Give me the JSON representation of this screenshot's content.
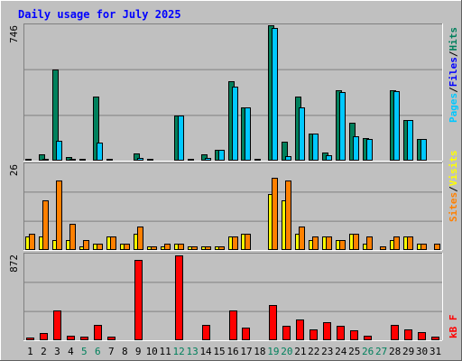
{
  "chart_data": {
    "type": "bar",
    "title": "Daily usage for July 2025",
    "categories": [
      "1",
      "2",
      "3",
      "4",
      "5",
      "6",
      "7",
      "8",
      "9",
      "10",
      "11",
      "12",
      "13",
      "14",
      "15",
      "16",
      "17",
      "18",
      "19",
      "20",
      "21",
      "22",
      "23",
      "24",
      "25",
      "26",
      "27",
      "28",
      "29",
      "30",
      "31"
    ],
    "weekend_days": [
      "5",
      "6",
      "12",
      "13",
      "19",
      "20",
      "26",
      "27"
    ],
    "panels": [
      {
        "id": "hits",
        "max_label": "746",
        "ylim": [
          0,
          746
        ],
        "series": [
          {
            "name": "Hits",
            "color": "#00805c",
            "values": [
              8,
              35,
              500,
              18,
              10,
              355,
              8,
              5,
              40,
              8,
              5,
              250,
              8,
              35,
              60,
              440,
              295,
              8,
              746,
              105,
              355,
              150,
              45,
              390,
              210,
              125,
              5,
              390,
              225,
              120,
              5
            ]
          },
          {
            "name": "Files",
            "color": "#00c8ff",
            "values": [
              4,
              8,
              110,
              8,
              5,
              100,
              4,
              3,
              15,
              4,
              3,
              250,
              4,
              15,
              60,
              410,
              295,
              4,
              730,
              25,
              295,
              148,
              30,
              380,
              135,
              120,
              3,
              385,
              225,
              120,
              0
            ]
          }
        ]
      },
      {
        "id": "visits",
        "max_label": "26",
        "ylim": [
          0,
          26
        ],
        "series": [
          {
            "name": "Visits",
            "color": "#ffff00",
            "values": [
              4,
              4,
              3,
              3,
              1,
              2,
              4,
              2,
              5,
              1,
              1,
              2,
              1,
              1,
              1,
              4,
              5,
              0,
              17,
              15,
              5,
              3,
              4,
              3,
              5,
              2,
              0,
              3,
              4,
              2,
              0
            ]
          },
          {
            "name": "Sites",
            "color": "#ff8000",
            "values": [
              5,
              15,
              21,
              8,
              3,
              2,
              4,
              2,
              7,
              1,
              2,
              2,
              1,
              1,
              1,
              4,
              5,
              0,
              22,
              21,
              7,
              4,
              4,
              3,
              5,
              4,
              1,
              4,
              4,
              2,
              2
            ]
          }
        ]
      },
      {
        "id": "kbytes",
        "max_label": "872",
        "ylim": [
          0,
          872
        ],
        "series": [
          {
            "name": "kB F",
            "color": "#ff0000",
            "values": [
              30,
              70,
              300,
              50,
              40,
              160,
              40,
              10,
              820,
              10,
              10,
              860,
              10,
              160,
              10,
              300,
              130,
              5,
              360,
              150,
              210,
              110,
              180,
              150,
              100,
              50,
              10,
              160,
              110,
              80,
              40
            ]
          }
        ]
      }
    ],
    "right_legend": {
      "top": [
        "Pages",
        "/",
        "Files",
        "/",
        "Hits"
      ],
      "middle": [
        "Sites",
        "/",
        "Visits"
      ],
      "bottom": [
        "kB F"
      ]
    }
  },
  "colors": {
    "background": "#c0c0c0",
    "plot": "#c0c0c0",
    "title": "#0000ff",
    "pages": "#00c8ff",
    "files": "#0000ff",
    "hits": "#00805c",
    "sites": "#ff8000",
    "visits": "#ffff00",
    "kbytes": "#ff0000",
    "weekend": "#00805c",
    "weekday": "#000000"
  }
}
